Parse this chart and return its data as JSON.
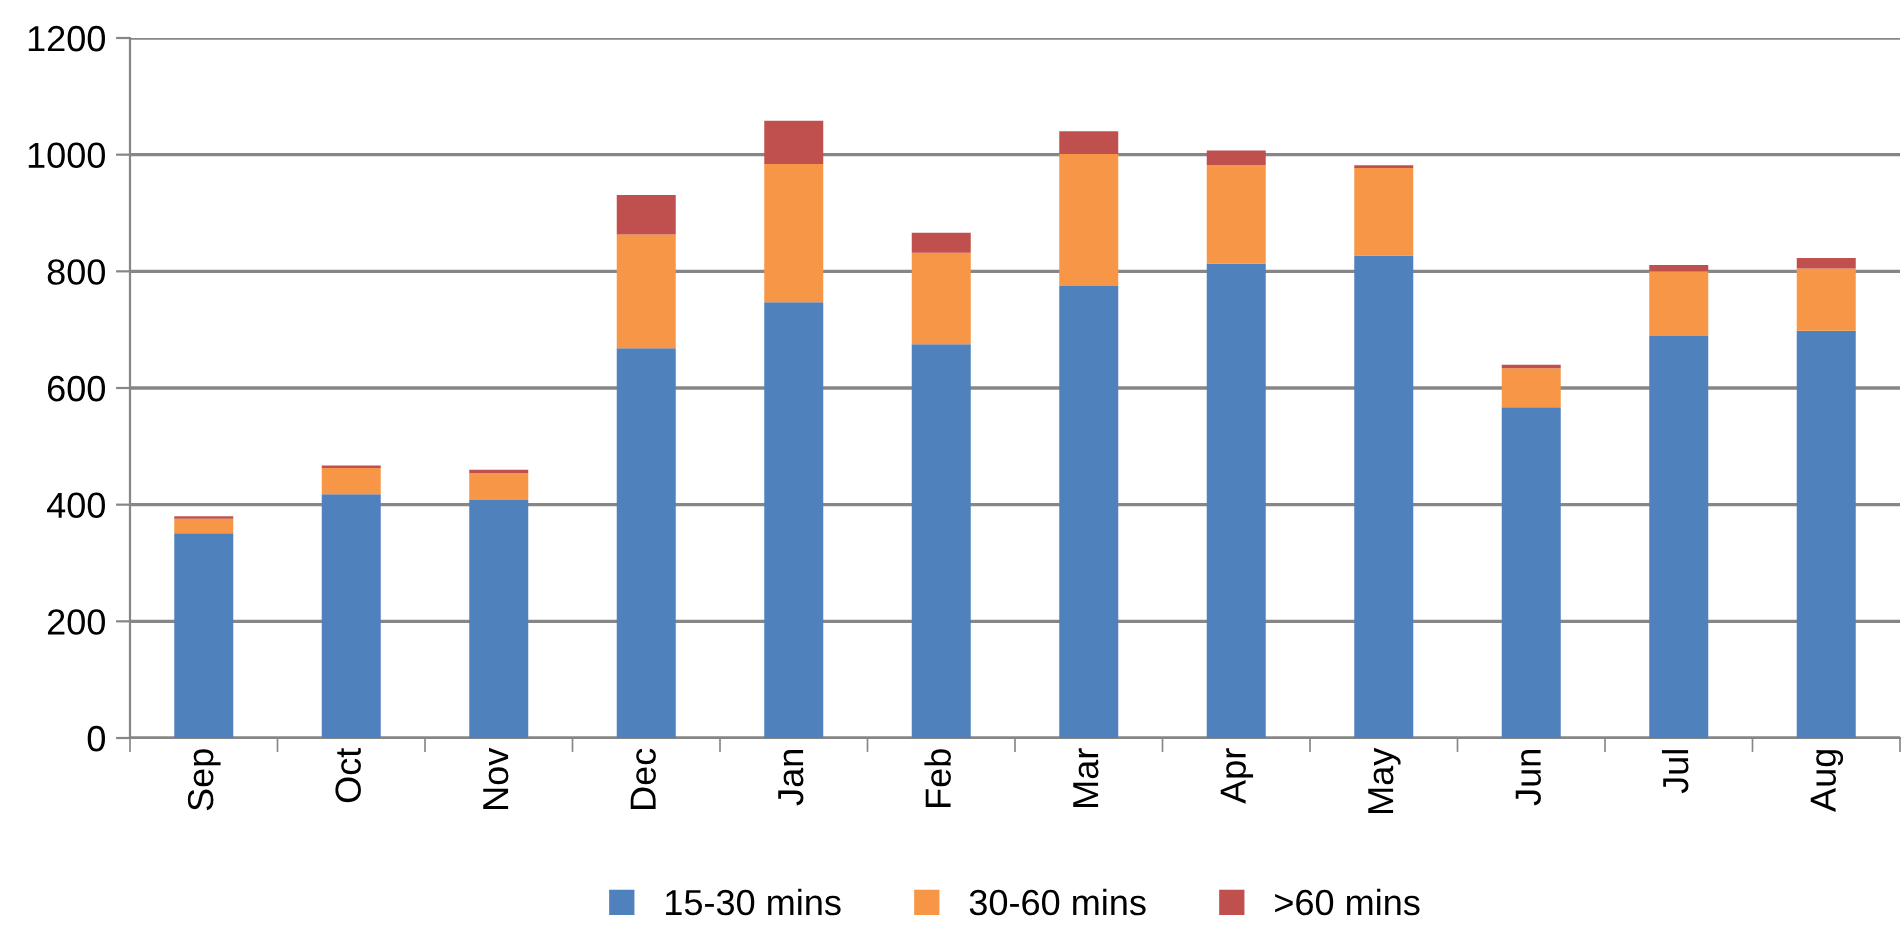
{
  "chart_data": {
    "type": "bar",
    "stacked": true,
    "categories": [
      "Sep",
      "Oct",
      "Nov",
      "Dec",
      "Jan",
      "Feb",
      "Mar",
      "Apr",
      "May",
      "Jun",
      "Jul",
      "Aug"
    ],
    "series": [
      {
        "name": "15-30 mins",
        "color": "#4f81bd",
        "values": [
          351,
          418,
          408,
          668,
          747,
          675,
          775,
          813,
          827,
          567,
          689,
          698
        ]
      },
      {
        "name": "30-60 mins",
        "color": "#f79646",
        "values": [
          25,
          45,
          46,
          195,
          237,
          157,
          226,
          169,
          150,
          67,
          111,
          107
        ]
      },
      {
        "name": ">60 mins",
        "color": "#c0504d",
        "values": [
          4,
          4,
          6,
          68,
          74,
          34,
          39,
          25,
          5,
          6,
          11,
          18
        ]
      }
    ],
    "ylim": [
      0,
      1200
    ],
    "yticks": [
      0,
      200,
      400,
      600,
      800,
      1000,
      1200
    ],
    "grid": "y",
    "legend": "bottom"
  }
}
